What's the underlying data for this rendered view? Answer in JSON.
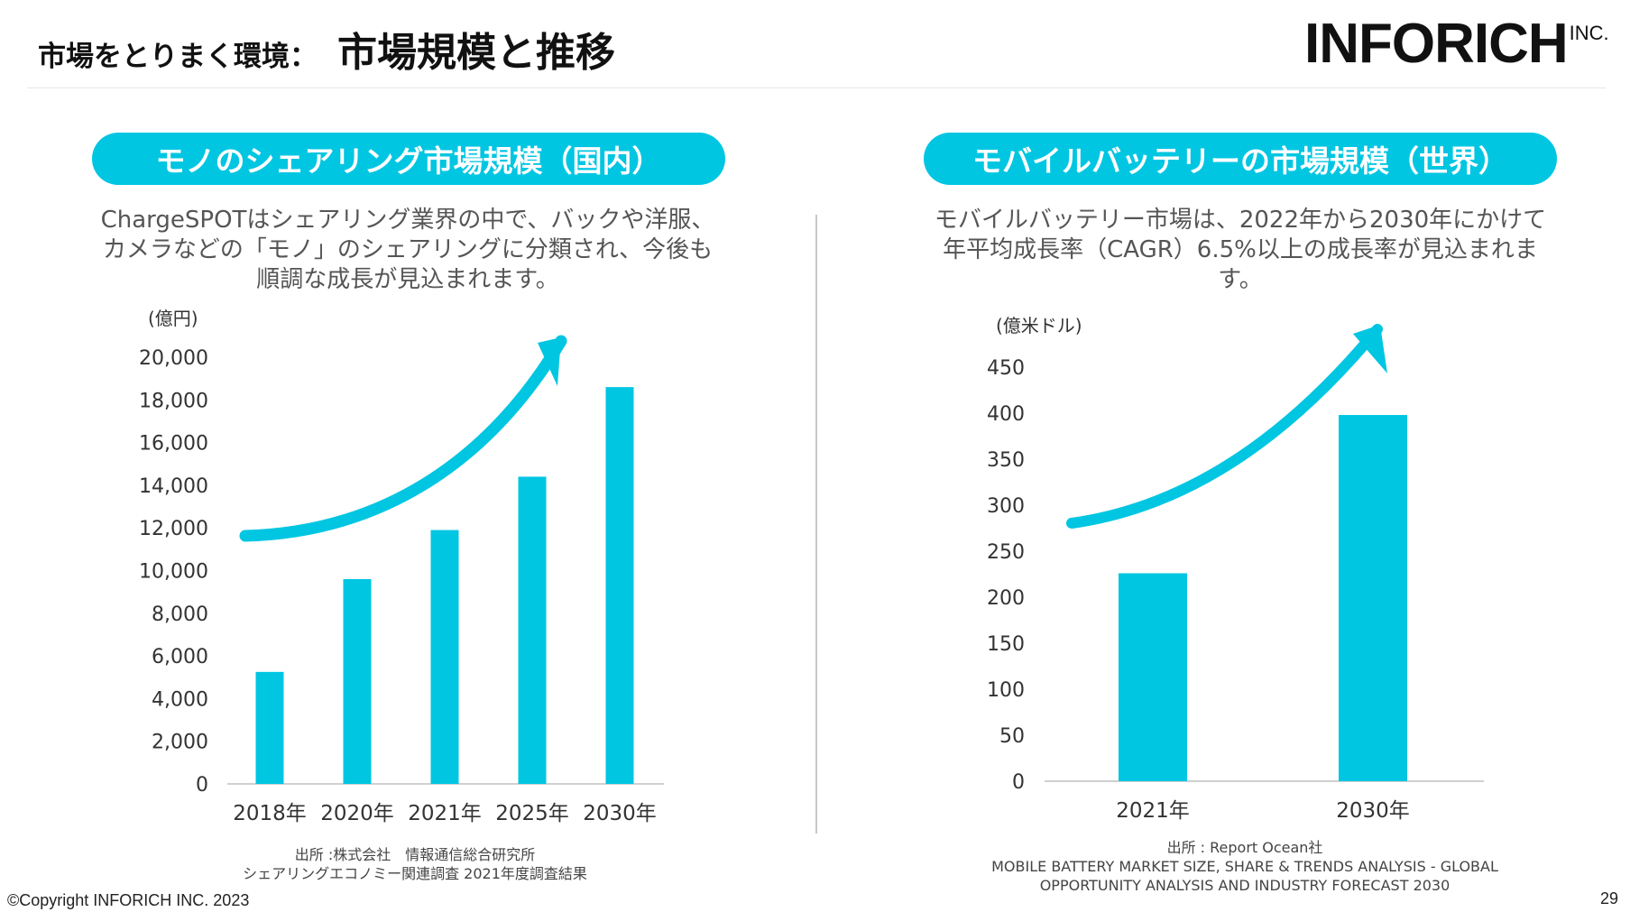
{
  "header": {
    "prefix": "市場をとりまく環境：",
    "title": "市場規模と推移",
    "logo_main": "INFORICH",
    "logo_sub": "INC."
  },
  "left": {
    "pill": "モノのシェアリング市場規模（国内）",
    "desc_lines": [
      "ChargeSPOTはシェアリング業界の中で、バックや洋服、",
      "カメラなどの「モノ」のシェアリングに分類され、今後も",
      "順調な成長が見込まれます。"
    ],
    "unit": "(億円)",
    "source_lines": [
      "出所 :株式会社　情報通信総合研究所",
      "シェアリングエコノミー関連調査 2021年度調査結果"
    ]
  },
  "right": {
    "pill": "モバイルバッテリーの市場規模（世界）",
    "desc_lines": [
      "モバイルバッテリー市場は、2022年から2030年にかけて",
      "年平均成長率（CAGR）6.5%以上の成長率が見込まれま",
      "す。"
    ],
    "unit": "(億米ドル)",
    "source_lines": [
      "出所 : Report Ocean社",
      "MOBILE BATTERY MARKET SIZE, SHARE & TRENDS ANALYSIS - GLOBAL",
      "OPPORTUNITY ANALYSIS AND INDUSTRY FORECAST 2030"
    ]
  },
  "chart_data": [
    {
      "type": "bar",
      "categories": [
        "2018年",
        "2020年",
        "2021年",
        "2025年",
        "2030年"
      ],
      "values": [
        5250,
        9600,
        11900,
        14400,
        18600
      ],
      "ylim": [
        0,
        20000
      ],
      "yticks": [
        "0",
        "2,000",
        "4,000",
        "6,000",
        "8,000",
        "10,000",
        "12,000",
        "14,000",
        "16,000",
        "18,000",
        "20,000"
      ],
      "ylabel": "(億円)",
      "grid": false,
      "color": "#00c6e2"
    },
    {
      "type": "bar",
      "categories": [
        "2021年",
        "2030年"
      ],
      "values": [
        226,
        398
      ],
      "ylim": [
        0,
        450
      ],
      "yticks": [
        "0",
        "50",
        "100",
        "150",
        "200",
        "250",
        "300",
        "350",
        "400",
        "450"
      ],
      "ylabel": "(億米ドル)",
      "grid": false,
      "color": "#00c6e2"
    }
  ],
  "footer": {
    "copyright": "©Copyright INFORICH INC. 2023",
    "page": "29"
  }
}
